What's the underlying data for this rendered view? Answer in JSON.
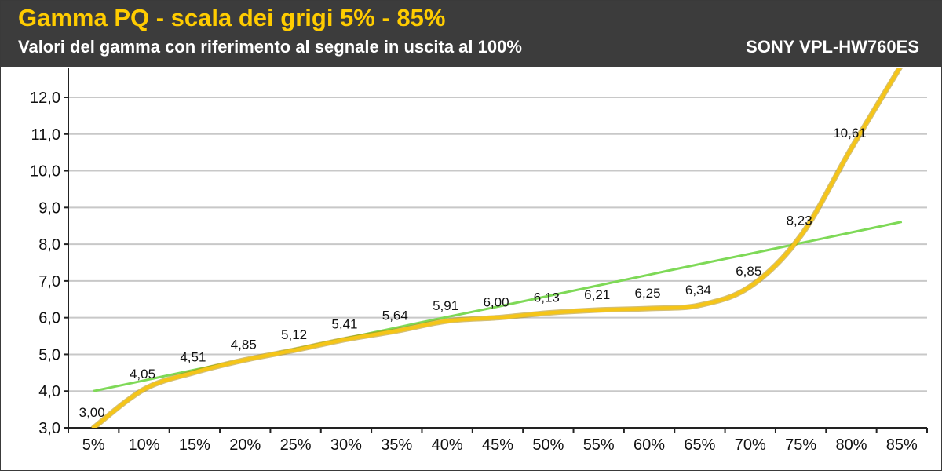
{
  "header": {
    "title": "Gamma PQ - scala dei grigi 5% - 85%",
    "subtitle": "Valori del gamma con riferimento al segnale in uscita al 100%",
    "device": "SONY VPL-HW760ES"
  },
  "colors": {
    "header_bg": "#3c3c3c",
    "title": "#ffcc00",
    "measured_line": "#f5c518",
    "reference_line": "#7ed957",
    "grid": "#c8c8c8"
  },
  "chart_data": {
    "type": "line",
    "title": "Gamma PQ - scala dei grigi 5% - 85%",
    "subtitle": "Valori del gamma con riferimento al segnale in uscita al 100%",
    "categories": [
      "5%",
      "10%",
      "15%",
      "20%",
      "25%",
      "30%",
      "35%",
      "40%",
      "45%",
      "50%",
      "55%",
      "60%",
      "65%",
      "70%",
      "75%",
      "80%",
      "85%"
    ],
    "y_tick_labels": [
      "3,0",
      "4,0",
      "5,0",
      "6,0",
      "7,0",
      "8,0",
      "9,0",
      "10,0",
      "11,0",
      "12,0"
    ],
    "ylim": [
      3.0,
      12.0
    ],
    "grid": true,
    "series": [
      {
        "values": [
          3.0,
          4.05,
          4.51,
          4.85,
          5.12,
          5.41,
          5.64,
          5.91,
          6.0,
          6.13,
          6.21,
          6.25,
          6.34,
          6.85,
          8.23,
          10.61,
          12.9
        ],
        "labels": [
          "3,00",
          "4,05",
          "4,51",
          "4,85",
          "5,12",
          "5,41",
          "5,64",
          "5,91",
          "6,00",
          "6,13",
          "6,21",
          "6,25",
          "6,34",
          "6,85",
          "8,23",
          "10,61",
          ""
        ],
        "color": "#f5c518"
      },
      {
        "values": [
          4.0,
          4.29,
          4.58,
          4.86,
          5.15,
          5.44,
          5.73,
          6.02,
          6.3,
          6.59,
          6.88,
          7.17,
          7.46,
          7.74,
          8.03,
          8.32,
          8.61
        ],
        "color": "#7ed957"
      }
    ]
  }
}
